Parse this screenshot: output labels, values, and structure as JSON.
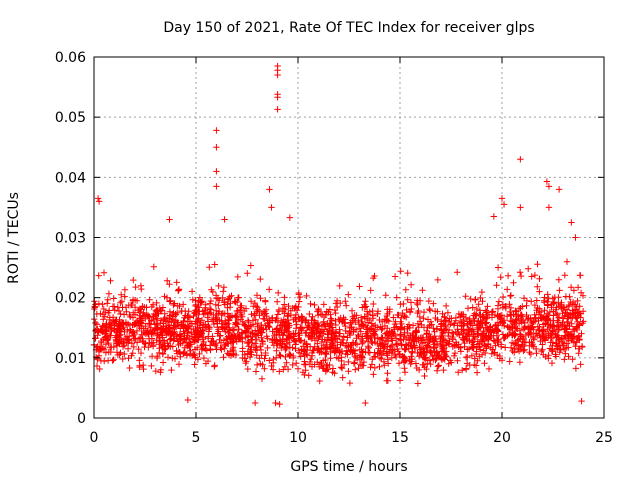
{
  "chart_data": {
    "type": "scatter",
    "title": "Day 150 of 2021, Rate Of TEC Index for receiver glps",
    "xlabel": "GPS time / hours",
    "ylabel": "ROTI / TECUs",
    "xlim": [
      0,
      25
    ],
    "ylim": [
      0,
      0.06
    ],
    "xticks": [
      0,
      5,
      10,
      15,
      20,
      25
    ],
    "xtick_labels": [
      "0",
      "5",
      "10",
      "15",
      "20",
      "25"
    ],
    "yticks": [
      0,
      0.01,
      0.02,
      0.03,
      0.04,
      0.05,
      0.06
    ],
    "ytick_labels": [
      "0",
      "0.01",
      "0.02",
      "0.03",
      "0.04",
      "0.05",
      "0.06"
    ],
    "grid": true,
    "marker": "+",
    "color": "#ff0000",
    "data_extent_hours": [
      0,
      24
    ],
    "typical_range": [
      0.005,
      0.025
    ],
    "outliers": [
      {
        "x": 0.2,
        "y": 0.0365
      },
      {
        "x": 0.25,
        "y": 0.036
      },
      {
        "x": 3.7,
        "y": 0.033
      },
      {
        "x": 6.0,
        "y": 0.0478
      },
      {
        "x": 6.0,
        "y": 0.045
      },
      {
        "x": 6.0,
        "y": 0.041
      },
      {
        "x": 6.0,
        "y": 0.0385
      },
      {
        "x": 6.4,
        "y": 0.033
      },
      {
        "x": 8.6,
        "y": 0.038
      },
      {
        "x": 8.7,
        "y": 0.035
      },
      {
        "x": 9.0,
        "y": 0.0585
      },
      {
        "x": 9.0,
        "y": 0.0578
      },
      {
        "x": 9.0,
        "y": 0.057
      },
      {
        "x": 9.0,
        "y": 0.0538
      },
      {
        "x": 9.0,
        "y": 0.0533
      },
      {
        "x": 9.0,
        "y": 0.0513
      },
      {
        "x": 9.6,
        "y": 0.0333
      },
      {
        "x": 19.6,
        "y": 0.0335
      },
      {
        "x": 20.0,
        "y": 0.0365
      },
      {
        "x": 20.1,
        "y": 0.0355
      },
      {
        "x": 20.9,
        "y": 0.043
      },
      {
        "x": 20.9,
        "y": 0.035
      },
      {
        "x": 22.2,
        "y": 0.0393
      },
      {
        "x": 22.3,
        "y": 0.0385
      },
      {
        "x": 22.3,
        "y": 0.035
      },
      {
        "x": 22.8,
        "y": 0.038
      },
      {
        "x": 23.4,
        "y": 0.0325
      },
      {
        "x": 23.6,
        "y": 0.03
      },
      {
        "x": 8.9,
        "y": 0.0025
      },
      {
        "x": 9.1,
        "y": 0.0023
      },
      {
        "x": 13.3,
        "y": 0.0025
      },
      {
        "x": 7.9,
        "y": 0.0025
      },
      {
        "x": 23.9,
        "y": 0.0028
      },
      {
        "x": 4.6,
        "y": 0.003
      }
    ],
    "trend": [
      {
        "x": 0,
        "y": 0.014
      },
      {
        "x": 2,
        "y": 0.015
      },
      {
        "x": 4,
        "y": 0.0145
      },
      {
        "x": 6,
        "y": 0.015
      },
      {
        "x": 8,
        "y": 0.0145
      },
      {
        "x": 10,
        "y": 0.014
      },
      {
        "x": 12,
        "y": 0.013
      },
      {
        "x": 14,
        "y": 0.0135
      },
      {
        "x": 16,
        "y": 0.013
      },
      {
        "x": 18,
        "y": 0.0135
      },
      {
        "x": 20,
        "y": 0.015
      },
      {
        "x": 22,
        "y": 0.0155
      },
      {
        "x": 24,
        "y": 0.0145
      }
    ]
  }
}
